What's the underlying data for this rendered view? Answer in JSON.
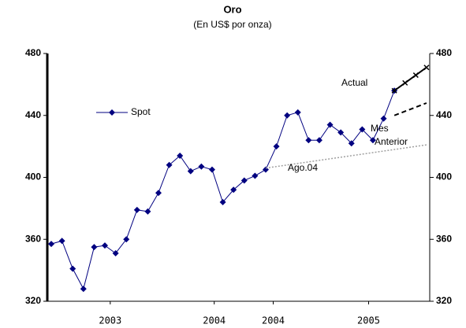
{
  "chart_data": {
    "type": "line",
    "title": "Oro",
    "subtitle": "(En US$ por onza)",
    "xlim": [
      -0.37,
      35.3
    ],
    "xticks": [
      {
        "value": 5.5,
        "label": "2003"
      },
      {
        "value": 15.2,
        "label": "2004"
      },
      {
        "value": 20.7,
        "label": "2004"
      },
      {
        "value": 29.6,
        "label": "2005"
      }
    ],
    "ylim": [
      320,
      480
    ],
    "yticks": [
      320,
      360,
      400,
      440,
      480
    ],
    "series": [
      {
        "name": "Spot",
        "color": "#000080",
        "style": "solid",
        "marker": "diamond",
        "x": [
          0,
          1,
          2,
          3,
          4,
          5,
          6,
          7,
          8,
          9,
          10,
          11,
          12,
          13,
          14,
          15,
          16,
          17,
          18,
          19,
          20,
          21,
          22,
          23,
          24,
          25,
          26,
          27,
          28,
          29,
          30,
          31,
          32
        ],
        "values": [
          357,
          359,
          341,
          328,
          355,
          356,
          351,
          360,
          379,
          378,
          390,
          408,
          414,
          404,
          407,
          405,
          384,
          392,
          398,
          401,
          405,
          420,
          440,
          442,
          424,
          424,
          434,
          429,
          422,
          431,
          424,
          438,
          456
        ]
      },
      {
        "name": "Actual",
        "color": "#000000",
        "style": "solid",
        "marker": "cross",
        "x": [
          32,
          33,
          34,
          35
        ],
        "values": [
          456,
          461,
          466,
          471
        ]
      },
      {
        "name": "Mes\nAnterior",
        "color": "#000000",
        "style": "dashed",
        "marker": "none",
        "x": [
          32,
          35
        ],
        "values": [
          440,
          448
        ]
      },
      {
        "name": "Ago.04",
        "color": "#a0a0a0",
        "style": "dotted",
        "marker": "none",
        "x": [
          20,
          35
        ],
        "values": [
          406,
          421
        ]
      }
    ]
  }
}
